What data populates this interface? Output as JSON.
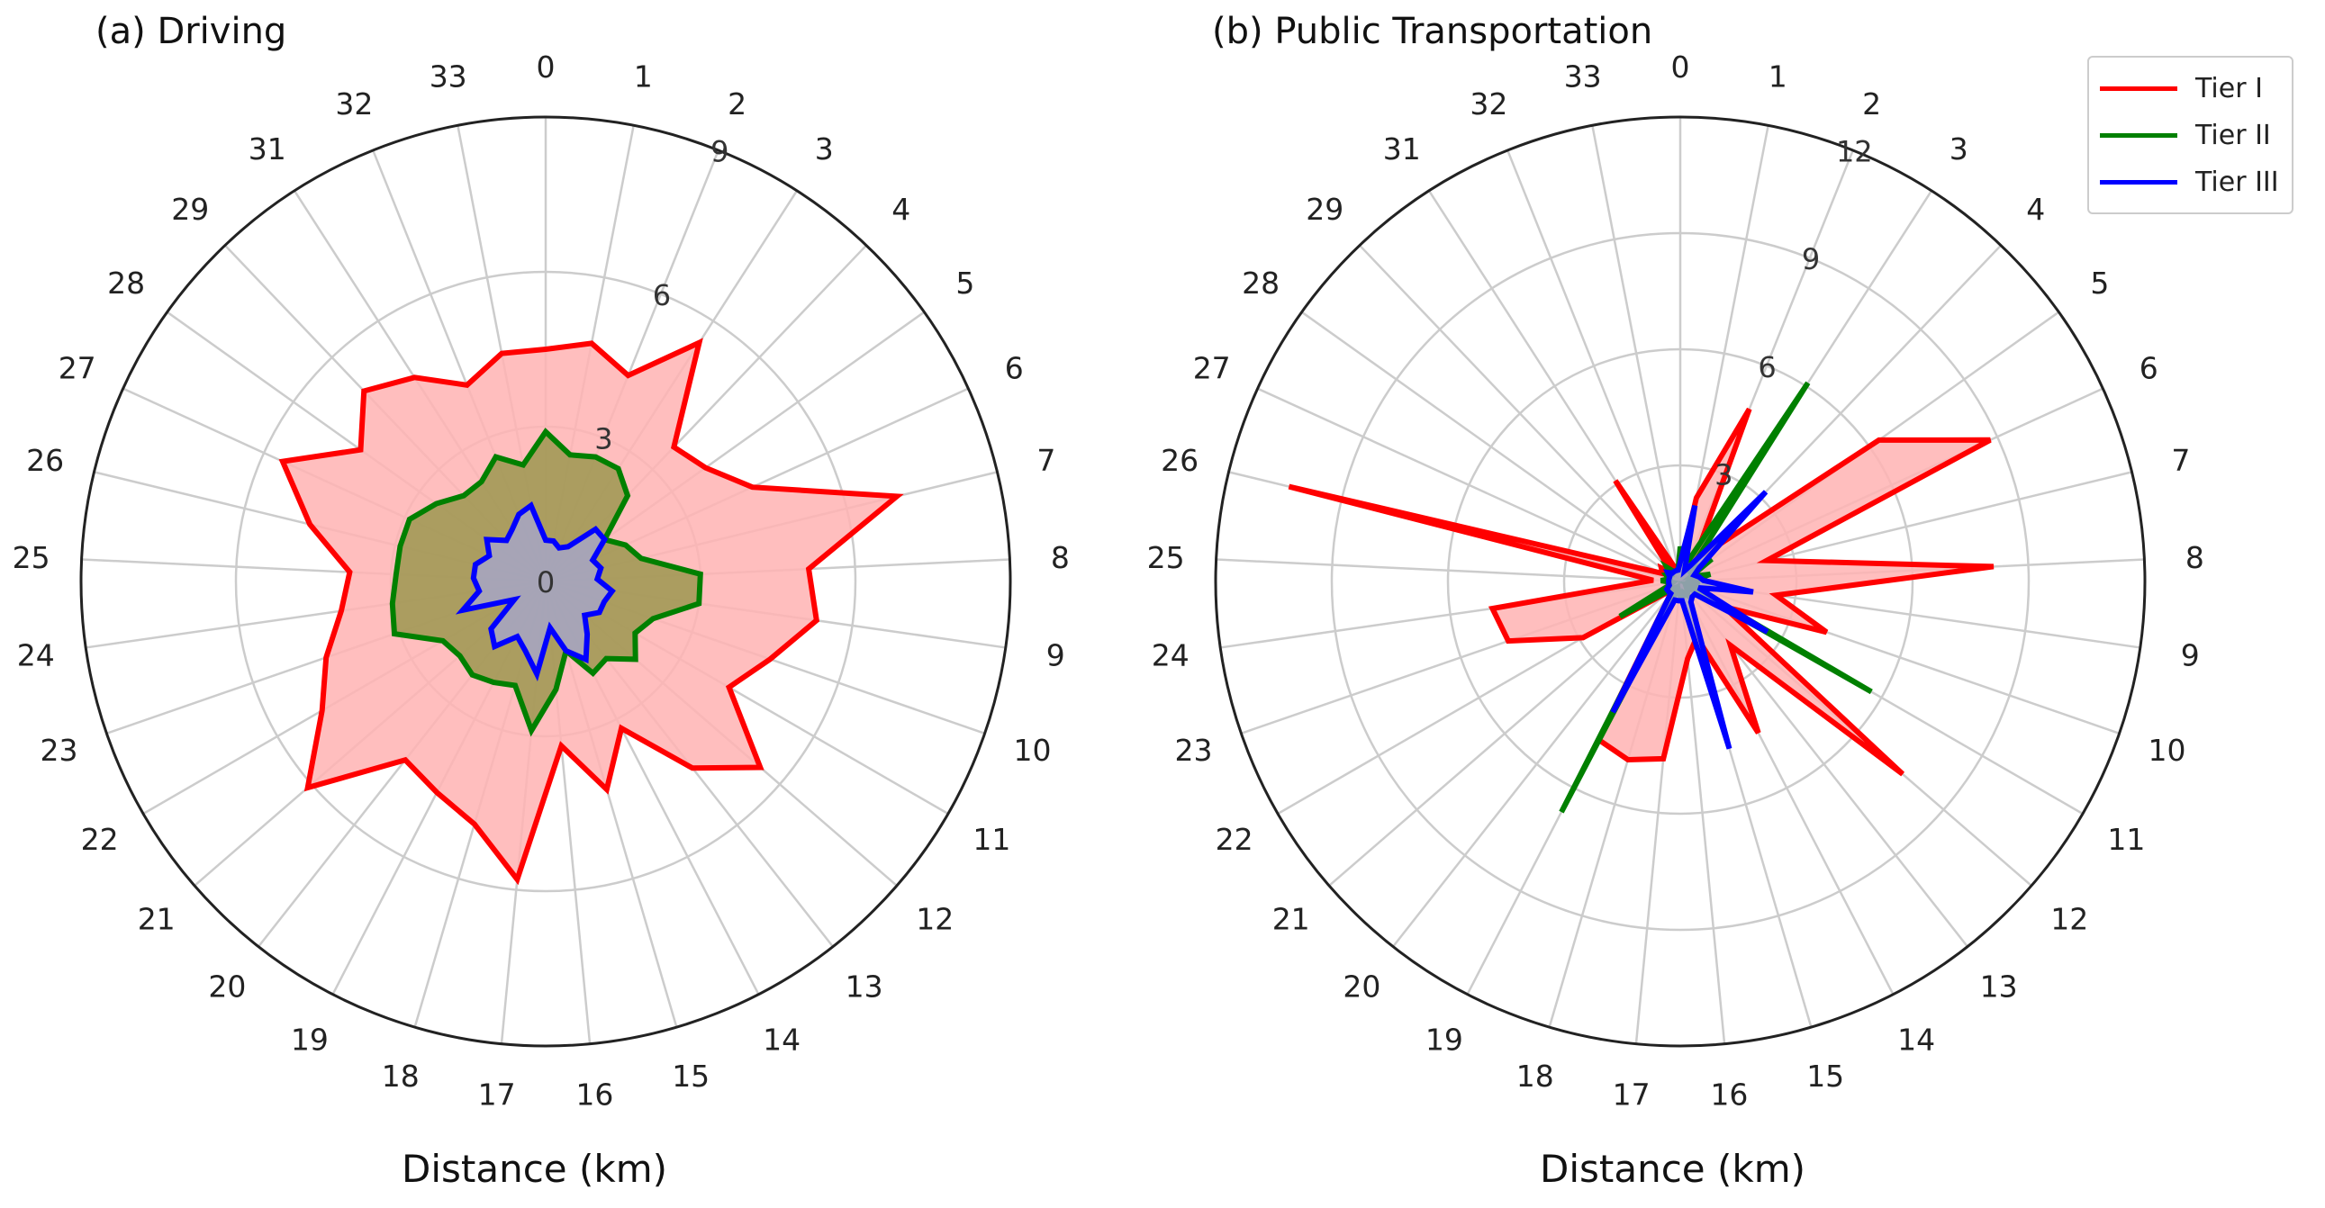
{
  "chart_data": [
    {
      "type": "radar",
      "title": "(a) Driving",
      "xlabel": "Distance (km)",
      "categories": [
        "0",
        "1",
        "2",
        "3",
        "4",
        "5",
        "6",
        "7",
        "8",
        "9",
        "10",
        "11",
        "12",
        "13",
        "14",
        "15",
        "16",
        "17",
        "18",
        "19",
        "20",
        "21",
        "22",
        "23",
        "24",
        "25",
        "26",
        "27",
        "28",
        "29",
        "31",
        "32",
        "33"
      ],
      "rlim": [
        0,
        9
      ],
      "rticks": [
        "0",
        "3",
        "6",
        "9"
      ],
      "grid": true,
      "series": [
        {
          "name": "Tier I",
          "color": "#ff0000",
          "fill": "#ffb3b3",
          "values": [
            4.5,
            4.7,
            4.3,
            5.5,
            3.6,
            3.8,
            4.4,
            7.0,
            5.1,
            5.3,
            4.6,
            4.1,
            5.5,
            4.6,
            3.2,
            4.2,
            3.2,
            5.8,
            4.9,
            4.6,
            4.4,
            6.1,
            5.0,
            4.5,
            4.0,
            3.8,
            4.7,
            5.6,
            4.4,
            5.1,
            4.7,
            4.1,
            4.5
          ]
        },
        {
          "name": "Tier II",
          "color": "#008000",
          "fill": "#9c9850",
          "values": [
            2.9,
            2.5,
            2.6,
            2.6,
            2.3,
            1.4,
            1.7,
            1.9,
            3.0,
            3.0,
            2.2,
            2.0,
            2.3,
            1.9,
            2.0,
            1.4,
            2.1,
            2.9,
            2.1,
            2.2,
            2.3,
            2.2,
            2.3,
            3.1,
            3.0,
            2.9,
            2.9,
            2.9,
            2.6,
            2.3,
            2.3,
            2.6,
            2.3
          ]
        },
        {
          "name": "Tier III",
          "color": "#0000ff",
          "fill": "#a6a6c6",
          "values": [
            0.8,
            0.8,
            0.7,
            0.8,
            1.4,
            1.4,
            1.0,
            1.1,
            1.0,
            1.3,
            1.2,
            1.2,
            1.0,
            1.3,
            1.7,
            1.4,
            0.9,
            1.8,
            1.4,
            1.2,
            1.6,
            1.4,
            0.7,
            1.7,
            1.3,
            1.4,
            1.4,
            1.2,
            1.4,
            1.1,
            1.2,
            1.4,
            1.5
          ]
        }
      ]
    },
    {
      "type": "radar",
      "title": "(b) Public Transportation",
      "xlabel": "Distance (km)",
      "categories": [
        "0",
        "1",
        "2",
        "3",
        "4",
        "5",
        "6",
        "7",
        "8",
        "9",
        "10",
        "11",
        "12",
        "13",
        "14",
        "15",
        "16",
        "17",
        "18",
        "19",
        "20",
        "21",
        "22",
        "23",
        "24",
        "25",
        "26",
        "27",
        "28",
        "29",
        "31",
        "32",
        "33"
      ],
      "rlim": [
        0,
        12
      ],
      "rticks": [
        "3",
        "6",
        "9",
        "12"
      ],
      "grid": true,
      "series": [
        {
          "name": "Tier I",
          "color": "#ff0000",
          "fill": "#ffb3b3",
          "values": [
            0.4,
            2.2,
            4.8,
            0.7,
            1.1,
            6.3,
            8.8,
            2.3,
            8.1,
            2.5,
            4.0,
            1.3,
            7.6,
            2.1,
            4.4,
            1.5,
            2.0,
            4.6,
            4.8,
            4.6,
            0.4,
            0.4,
            2.9,
            4.7,
            4.9,
            0.7,
            10.4,
            0.5,
            0.6,
            0.3,
            3.1,
            0.4,
            0.4
          ]
        },
        {
          "name": "Tier II",
          "color": "#008000",
          "fill": "#9c9850",
          "values": [
            0.9,
            0.5,
            0.6,
            6.1,
            0.3,
            1.0,
            0.3,
            0.8,
            0.3,
            0.5,
            0.2,
            5.7,
            0.2,
            0.3,
            0.4,
            0.3,
            0.5,
            0.3,
            0.2,
            6.7,
            0.2,
            0.3,
            1.8,
            0.3,
            0.2,
            0.5,
            0.3,
            0.4,
            0.3,
            0.5,
            0.3,
            0.3,
            0.3
          ]
        },
        {
          "name": "Tier III",
          "color": "#0000ff",
          "fill": "#a6a6c6",
          "values": [
            0.5,
            2.0,
            0.3,
            0.5,
            3.2,
            0.6,
            0.4,
            0.5,
            0.6,
            1.9,
            0.5,
            2.6,
            0.5,
            0.5,
            0.6,
            4.5,
            0.5,
            0.5,
            0.5,
            3.8,
            0.4,
            0.4,
            0.4,
            0.3,
            0.3,
            0.3,
            0.3,
            0.3,
            0.4,
            0.3,
            0.3,
            0.3,
            0.3
          ]
        }
      ]
    }
  ],
  "legend": {
    "items": [
      {
        "label": "Tier I",
        "color": "#ff0000"
      },
      {
        "label": "Tier II",
        "color": "#008000"
      },
      {
        "label": "Tier III",
        "color": "#0000ff"
      }
    ]
  }
}
